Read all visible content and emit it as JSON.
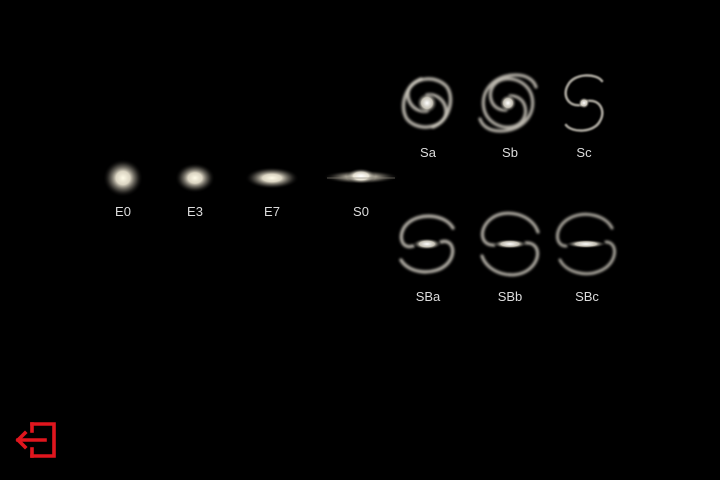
{
  "galaxies": {
    "e0": {
      "label": "E0"
    },
    "e3": {
      "label": "E3"
    },
    "e7": {
      "label": "E7"
    },
    "s0": {
      "label": "S0"
    },
    "sa": {
      "label": "Sa"
    },
    "sb": {
      "label": "Sb"
    },
    "sc": {
      "label": "Sc"
    },
    "sba": {
      "label": "SBa"
    },
    "sbb": {
      "label": "SBb"
    },
    "sbc": {
      "label": "SBc"
    }
  },
  "exit_button": {
    "icon": "exit-icon",
    "color": "#e0161e"
  },
  "colors": {
    "background": "#000000",
    "galaxy_core": "#fffbe8",
    "label": "#dcdcdc"
  }
}
